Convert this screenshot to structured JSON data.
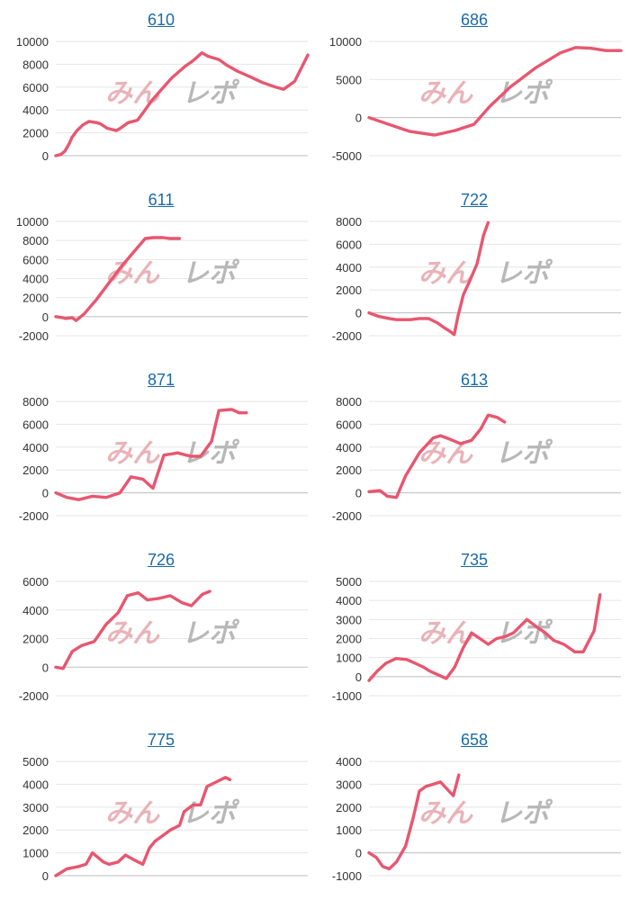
{
  "charts": [
    {
      "title": "610"
    },
    {
      "title": "686"
    },
    {
      "title": "611"
    },
    {
      "title": "722"
    },
    {
      "title": "871"
    },
    {
      "title": "613"
    },
    {
      "title": "726"
    },
    {
      "title": "735"
    },
    {
      "title": "775"
    },
    {
      "title": "658"
    }
  ],
  "watermark": {
    "left": "みん",
    "right": "レポ"
  },
  "colors": {
    "line": "#e8566f",
    "grid": "#e6e6e6",
    "zero_line": "#bdbdbd",
    "title_link": "#1a6aa8",
    "watermark_left": "#e9b3b8",
    "watermark_right": "#b8b8b8"
  },
  "chart_data": [
    {
      "type": "line",
      "title": "610",
      "ylim": [
        0,
        10000
      ],
      "yticks": [
        "10000",
        "8000",
        "6000",
        "4000",
        "2000",
        "0"
      ],
      "x": [
        0,
        5,
        9,
        13,
        16,
        21,
        27,
        33,
        40,
        44,
        51,
        60,
        64,
        72,
        81,
        87,
        95,
        105,
        115,
        128,
        136,
        145,
        151,
        162,
        170,
        180,
        193,
        205,
        218,
        226,
        237,
        250
      ],
      "y": [
        0,
        100,
        400,
        1000,
        1600,
        2200,
        2700,
        3000,
        2900,
        2800,
        2400,
        2200,
        2400,
        2900,
        3100,
        3800,
        4800,
        5800,
        6800,
        7800,
        8300,
        9000,
        8700,
        8400,
        7900,
        7400,
        6900,
        6400,
        6000,
        5800,
        6500,
        8800
      ]
    },
    {
      "type": "line",
      "title": "686",
      "ylim": [
        -5000,
        10000
      ],
      "yticks": [
        "10000",
        "5000",
        "0",
        "-5000"
      ],
      "x": [
        0,
        20,
        40,
        65,
        85,
        104,
        120,
        140,
        165,
        190,
        205,
        220,
        235,
        250
      ],
      "y": [
        0,
        -900,
        -1800,
        -2300,
        -1700,
        -900,
        1500,
        4000,
        6500,
        8500,
        9200,
        9100,
        8800,
        8800
      ],
      "xmax": 250
    },
    {
      "type": "line",
      "title": "611",
      "ylim": [
        -2000,
        10000
      ],
      "yticks": [
        "10000",
        "8000",
        "6000",
        "4000",
        "2000",
        "0",
        "-2000"
      ],
      "x": [
        0,
        8,
        12,
        20,
        25,
        35,
        50,
        65,
        80,
        95,
        110,
        120,
        128,
        132,
        140,
        145,
        152
      ],
      "y": [
        0,
        -100,
        -200,
        -100,
        -400,
        300,
        1800,
        3500,
        5200,
        6700,
        8200,
        8300,
        8300,
        8300,
        8200,
        8200,
        8200
      ],
      "xmax": 310
    },
    {
      "type": "line",
      "title": "722",
      "ylim": [
        -2000,
        8000
      ],
      "yticks": [
        "8000",
        "6000",
        "4000",
        "2000",
        "0",
        "-2000"
      ],
      "x": [
        0,
        10,
        22,
        30,
        45,
        55,
        65,
        75,
        82,
        88,
        93,
        97,
        103,
        110,
        118,
        125,
        130
      ],
      "y": [
        0,
        -300,
        -500,
        -600,
        -600,
        -500,
        -500,
        -900,
        -1300,
        -1600,
        -1900,
        -300,
        1600,
        2800,
        4300,
        6800,
        7900
      ],
      "xmax": 275
    },
    {
      "type": "line",
      "title": "871",
      "ylim": [
        -2000,
        8000
      ],
      "yticks": [
        "8000",
        "6000",
        "4000",
        "2000",
        "0",
        "-2000"
      ],
      "x": [
        0,
        12,
        25,
        40,
        55,
        70,
        82,
        95,
        106,
        118,
        126,
        133,
        142,
        148,
        158,
        170,
        178,
        192,
        200,
        208
      ],
      "y": [
        0,
        -400,
        -600,
        -300,
        -400,
        0,
        1400,
        1200,
        400,
        3300,
        3400,
        3500,
        3300,
        3200,
        3200,
        4500,
        7200,
        7300,
        7000,
        7000
      ],
      "xmax": 275
    },
    {
      "type": "line",
      "title": "613",
      "ylim": [
        -2000,
        8000
      ],
      "yticks": [
        "8000",
        "6000",
        "4000",
        "2000",
        "0",
        "-2000"
      ],
      "x": [
        0,
        12,
        20,
        30,
        40,
        55,
        70,
        78,
        88,
        100,
        112,
        122,
        130,
        140,
        148
      ],
      "y": [
        100,
        200,
        -300,
        -400,
        1500,
        3500,
        4800,
        5000,
        4700,
        4300,
        4600,
        5600,
        6800,
        6600,
        6200
      ],
      "xmax": 275
    },
    {
      "type": "line",
      "title": "726",
      "ylim": [
        -2000,
        6000
      ],
      "yticks": [
        "6000",
        "4000",
        "2000",
        "0",
        "-2000"
      ],
      "x": [
        0,
        8,
        18,
        28,
        42,
        55,
        68,
        78,
        90,
        100,
        112,
        125,
        138,
        148,
        160,
        168
      ],
      "y": [
        0,
        -100,
        1100,
        1500,
        1800,
        3000,
        3800,
        5000,
        5200,
        4700,
        4800,
        5000,
        4500,
        4300,
        5100,
        5300
      ],
      "xmax": 275
    },
    {
      "type": "line",
      "title": "735",
      "ylim": [
        -1000,
        5000
      ],
      "yticks": [
        "5000",
        "4000",
        "3000",
        "2000",
        "1000",
        "0",
        "-1000"
      ],
      "x": [
        0,
        10,
        20,
        32,
        45,
        55,
        65,
        72,
        82,
        92,
        102,
        112,
        122,
        132,
        142,
        152,
        162,
        172,
        188,
        200,
        210,
        220,
        232,
        245,
        255,
        268,
        275
      ],
      "y": [
        -200,
        300,
        700,
        950,
        900,
        700,
        500,
        300,
        100,
        -100,
        500,
        1500,
        2300,
        2000,
        1700,
        2000,
        2100,
        2300,
        3000,
        2600,
        2300,
        1900,
        1700,
        1300,
        1300,
        2400,
        4300
      ],
      "xmax": 300
    },
    {
      "type": "line",
      "title": "775",
      "ylim": [
        0,
        5000
      ],
      "yticks": [
        "5000",
        "4000",
        "3000",
        "2000",
        "1000",
        "0"
      ],
      "x": [
        0,
        12,
        25,
        33,
        40,
        52,
        58,
        68,
        76,
        85,
        95,
        102,
        108,
        115,
        125,
        135,
        140,
        150,
        158,
        165,
        175,
        185,
        190
      ],
      "y": [
        0,
        300,
        400,
        500,
        1000,
        600,
        500,
        600,
        900,
        700,
        500,
        1200,
        1500,
        1700,
        2000,
        2200,
        2800,
        3100,
        3100,
        3900,
        4100,
        4300,
        4200
      ],
      "xmax": 275
    },
    {
      "type": "line",
      "title": "658",
      "ylim": [
        -1000,
        4000
      ],
      "yticks": [
        "4000",
        "3000",
        "2000",
        "1000",
        "0",
        "-1000"
      ],
      "x": [
        0,
        8,
        15,
        22,
        30,
        40,
        48,
        55,
        62,
        70,
        78,
        85,
        92,
        98
      ],
      "y": [
        0,
        -200,
        -600,
        -700,
        -400,
        300,
        1500,
        2700,
        2900,
        3000,
        3100,
        2800,
        2500,
        3400
      ],
      "xmax": 275
    }
  ]
}
